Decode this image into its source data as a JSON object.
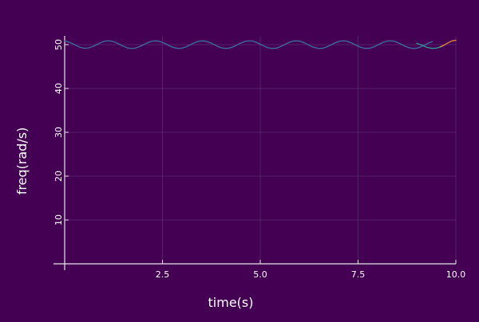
{
  "colors": {
    "background": "#440154",
    "axis": "#e6e6e6",
    "grid": "#5a2a6e",
    "text": "#ffffff"
  },
  "chart_data": {
    "type": "line",
    "title": "",
    "xlabel": "time(s)",
    "ylabel": "freq(rad/s)",
    "xlim": [
      0,
      10
    ],
    "ylim": [
      0,
      52
    ],
    "xticks": [
      2.5,
      5.0,
      7.5,
      10.0
    ],
    "xtick_labels": [
      "2.5",
      "5.0",
      "7.5",
      "10.0"
    ],
    "yticks": [
      10,
      20,
      30,
      40,
      50
    ],
    "ytick_labels": [
      "10",
      "20",
      "30",
      "40",
      "50"
    ],
    "grid": true,
    "legend": "none",
    "series": [
      {
        "color": "#3e6ea5",
        "x": [
          0.0,
          0.1,
          0.2,
          0.3,
          0.4,
          0.5,
          0.6,
          0.7,
          0.8,
          0.9,
          1.0,
          1.1,
          1.2,
          1.3,
          1.4,
          1.5,
          1.6,
          1.7,
          1.8,
          1.9,
          2.0,
          2.1,
          2.2,
          2.3,
          2.4,
          2.5,
          2.6,
          2.7,
          2.8,
          2.9,
          3.0,
          3.1,
          3.2,
          3.3,
          3.4,
          3.5,
          3.6,
          3.7,
          3.8,
          3.9,
          4.0,
          4.1,
          4.2,
          4.3,
          4.4,
          4.5,
          4.6,
          4.7,
          4.8,
          4.9,
          5.0,
          5.1,
          5.2,
          5.3,
          5.4,
          5.5,
          5.6,
          5.7,
          5.8,
          5.9,
          6.0,
          6.1,
          6.2,
          6.3,
          6.4,
          6.5,
          6.6,
          6.7,
          6.8,
          6.9,
          7.0,
          7.1,
          7.2,
          7.3,
          7.4,
          7.5,
          7.6,
          7.7,
          7.8,
          7.9,
          8.0,
          8.1,
          8.2,
          8.3,
          8.4,
          8.5,
          8.6,
          8.7,
          8.8,
          8.9,
          9.0,
          9.1,
          9.2,
          9.3,
          9.4
        ],
        "y": [
          50.82,
          50.62,
          50.24,
          49.76,
          49.38,
          49.18,
          49.23,
          49.51,
          49.91,
          50.37,
          50.72,
          50.88,
          50.8,
          50.51,
          50.09,
          49.63,
          49.28,
          49.12,
          49.2,
          49.49,
          49.91,
          50.36,
          50.71,
          50.87,
          50.8,
          50.51,
          50.09,
          49.64,
          49.29,
          49.13,
          49.2,
          49.49,
          49.91,
          50.36,
          50.71,
          50.87,
          50.8,
          50.52,
          50.1,
          49.64,
          49.29,
          49.13,
          49.19,
          49.48,
          49.9,
          50.36,
          50.71,
          50.87,
          50.81,
          50.52,
          50.1,
          49.64,
          49.29,
          49.13,
          49.19,
          49.48,
          49.9,
          50.36,
          50.71,
          50.87,
          50.81,
          50.52,
          50.1,
          49.64,
          49.29,
          49.13,
          49.19,
          49.48,
          49.9,
          50.36,
          50.71,
          50.87,
          50.81,
          50.52,
          50.1,
          49.64,
          49.29,
          49.13,
          49.19,
          49.48,
          49.9,
          50.36,
          50.71,
          50.87,
          50.81,
          50.52,
          50.1,
          49.64,
          49.29,
          49.13,
          49.19,
          49.48,
          49.9,
          50.36,
          50.71
        ]
      },
      {
        "color": "#2f9e8f",
        "x": [
          9.0,
          9.1,
          9.2,
          9.3,
          9.4,
          9.5,
          9.6,
          9.7
        ],
        "y": [
          50.3,
          50.0,
          49.6,
          49.3,
          49.15,
          49.2,
          49.45,
          49.85
        ]
      },
      {
        "color": "#e08a3c",
        "x": [
          9.6,
          9.7,
          9.8,
          9.9,
          10.0
        ],
        "y": [
          49.5,
          49.9,
          50.4,
          50.85,
          51.0
        ]
      }
    ]
  }
}
